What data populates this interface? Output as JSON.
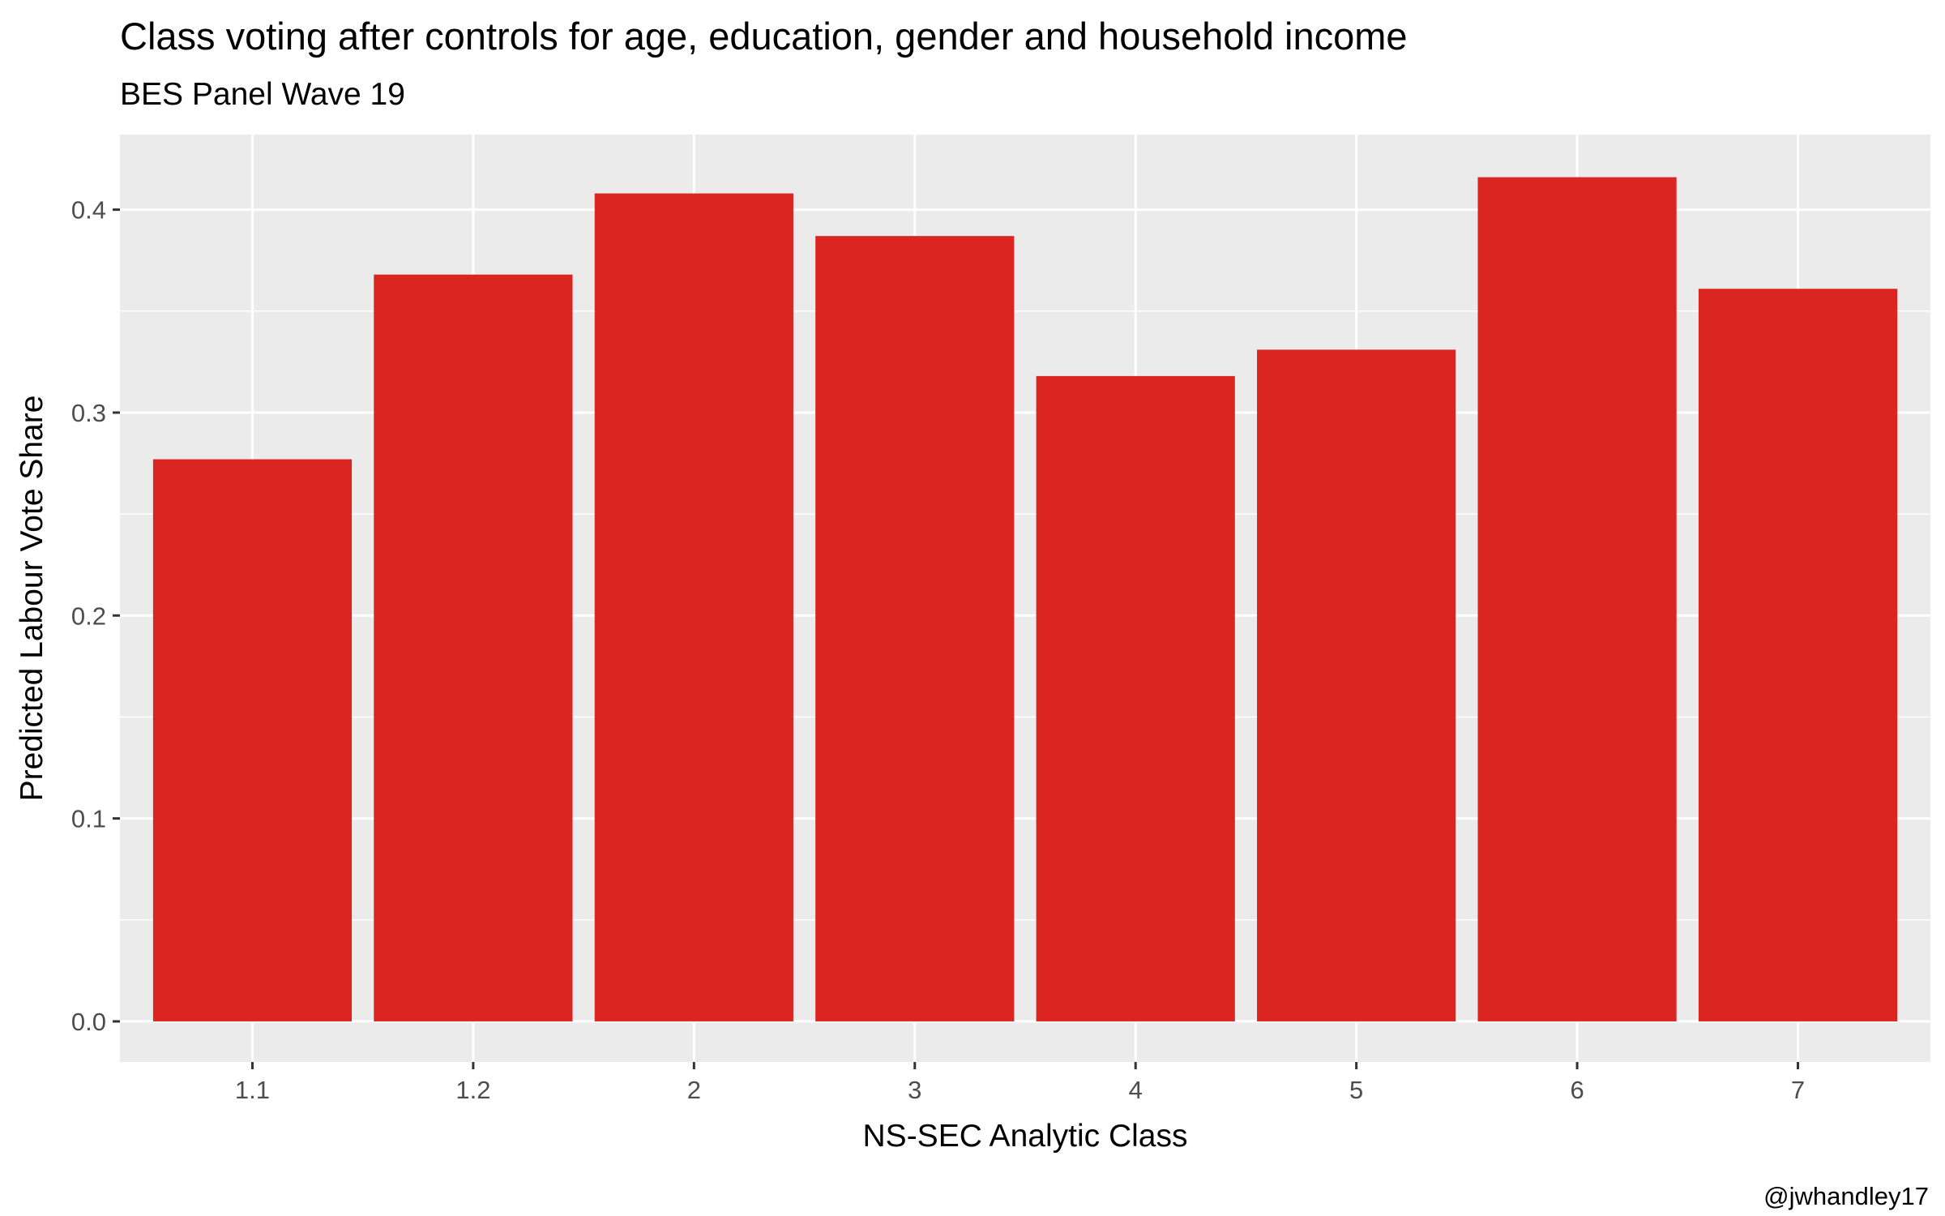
{
  "chart_data": {
    "type": "bar",
    "title": "Class voting after controls for age, education, gender and household income",
    "subtitle": "BES Panel Wave 19",
    "xlabel": "NS-SEC Analytic Class",
    "ylabel": "Predicted Labour Vote Share",
    "caption": "@jwhandley17",
    "categories": [
      "1.1",
      "1.2",
      "2",
      "3",
      "4",
      "5",
      "6",
      "7"
    ],
    "values": [
      0.277,
      0.368,
      0.408,
      0.387,
      0.318,
      0.331,
      0.416,
      0.361
    ],
    "ylim": [
      -0.02,
      0.437
    ],
    "y_ticks": [
      0.0,
      0.1,
      0.2,
      0.3,
      0.4
    ],
    "y_tick_labels": [
      "0.0",
      "0.1",
      "0.2",
      "0.3",
      "0.4"
    ],
    "grid": true,
    "legend": "none",
    "colors": {
      "bar": "#da2520",
      "panel_background": "#ebebeb",
      "grid": "#ffffff",
      "tick_label": "#4d4d4d",
      "tick_mark": "#333333"
    }
  }
}
